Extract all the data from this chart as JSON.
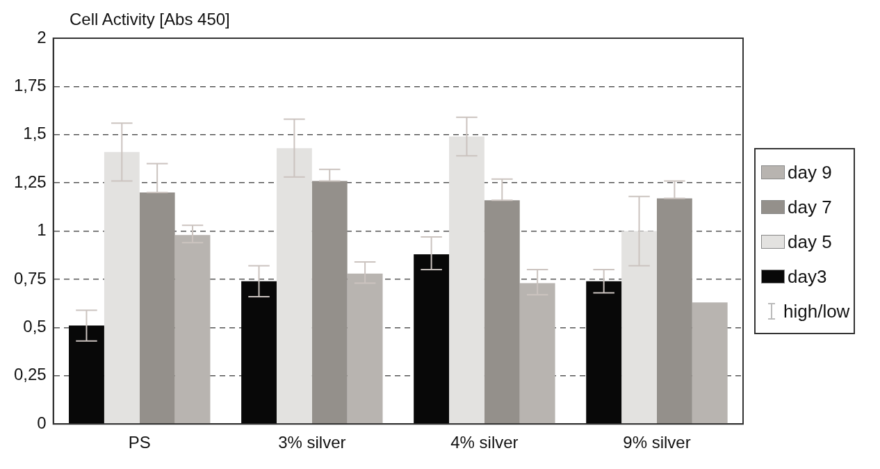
{
  "chart_data": {
    "type": "bar",
    "ylabel": "Cell Activity [Abs 450]",
    "categories": [
      "PS",
      "3% silver",
      "4% silver",
      "9% silver"
    ],
    "series": [
      {
        "name": "day3",
        "color": "#080808",
        "values": [
          0.51,
          0.74,
          0.88,
          0.74
        ],
        "errors": [
          [
            0.43,
            0.59
          ],
          [
            0.66,
            0.82
          ],
          [
            0.8,
            0.97
          ],
          [
            0.68,
            0.8
          ]
        ]
      },
      {
        "name": "day 5",
        "color": "#e3e2e0",
        "values": [
          1.41,
          1.43,
          1.49,
          1.0
        ],
        "errors": [
          [
            1.26,
            1.56
          ],
          [
            1.28,
            1.58
          ],
          [
            1.39,
            1.59
          ],
          [
            0.82,
            1.18
          ]
        ]
      },
      {
        "name": "day 7",
        "color": "#94908b",
        "values": [
          1.2,
          1.26,
          1.16,
          1.17
        ],
        "errors": [
          [
            1.2,
            1.35
          ],
          [
            1.26,
            1.32
          ],
          [
            1.16,
            1.27
          ],
          [
            1.17,
            1.26
          ]
        ]
      },
      {
        "name": "day 9",
        "color": "#b8b4b0",
        "values": [
          0.98,
          0.78,
          0.73,
          0.63
        ],
        "errors": [
          [
            0.94,
            1.03
          ],
          [
            0.73,
            0.84
          ],
          [
            0.67,
            0.8
          ],
          null
        ]
      }
    ],
    "annotations": [
      "high/low"
    ],
    "ylim": [
      0,
      2
    ],
    "yticks": [
      0,
      {
        "value": 0.25,
        "label": "0,25"
      },
      {
        "value": 0.5,
        "label": "0,5"
      },
      {
        "value": 0.75,
        "label": "0,75"
      },
      1,
      {
        "value": 1.25,
        "label": "1,25"
      },
      {
        "value": 1.5,
        "label": "1,5"
      },
      {
        "value": 1.75,
        "label": "1,75"
      },
      2
    ],
    "grid": "y",
    "legend": "right"
  }
}
